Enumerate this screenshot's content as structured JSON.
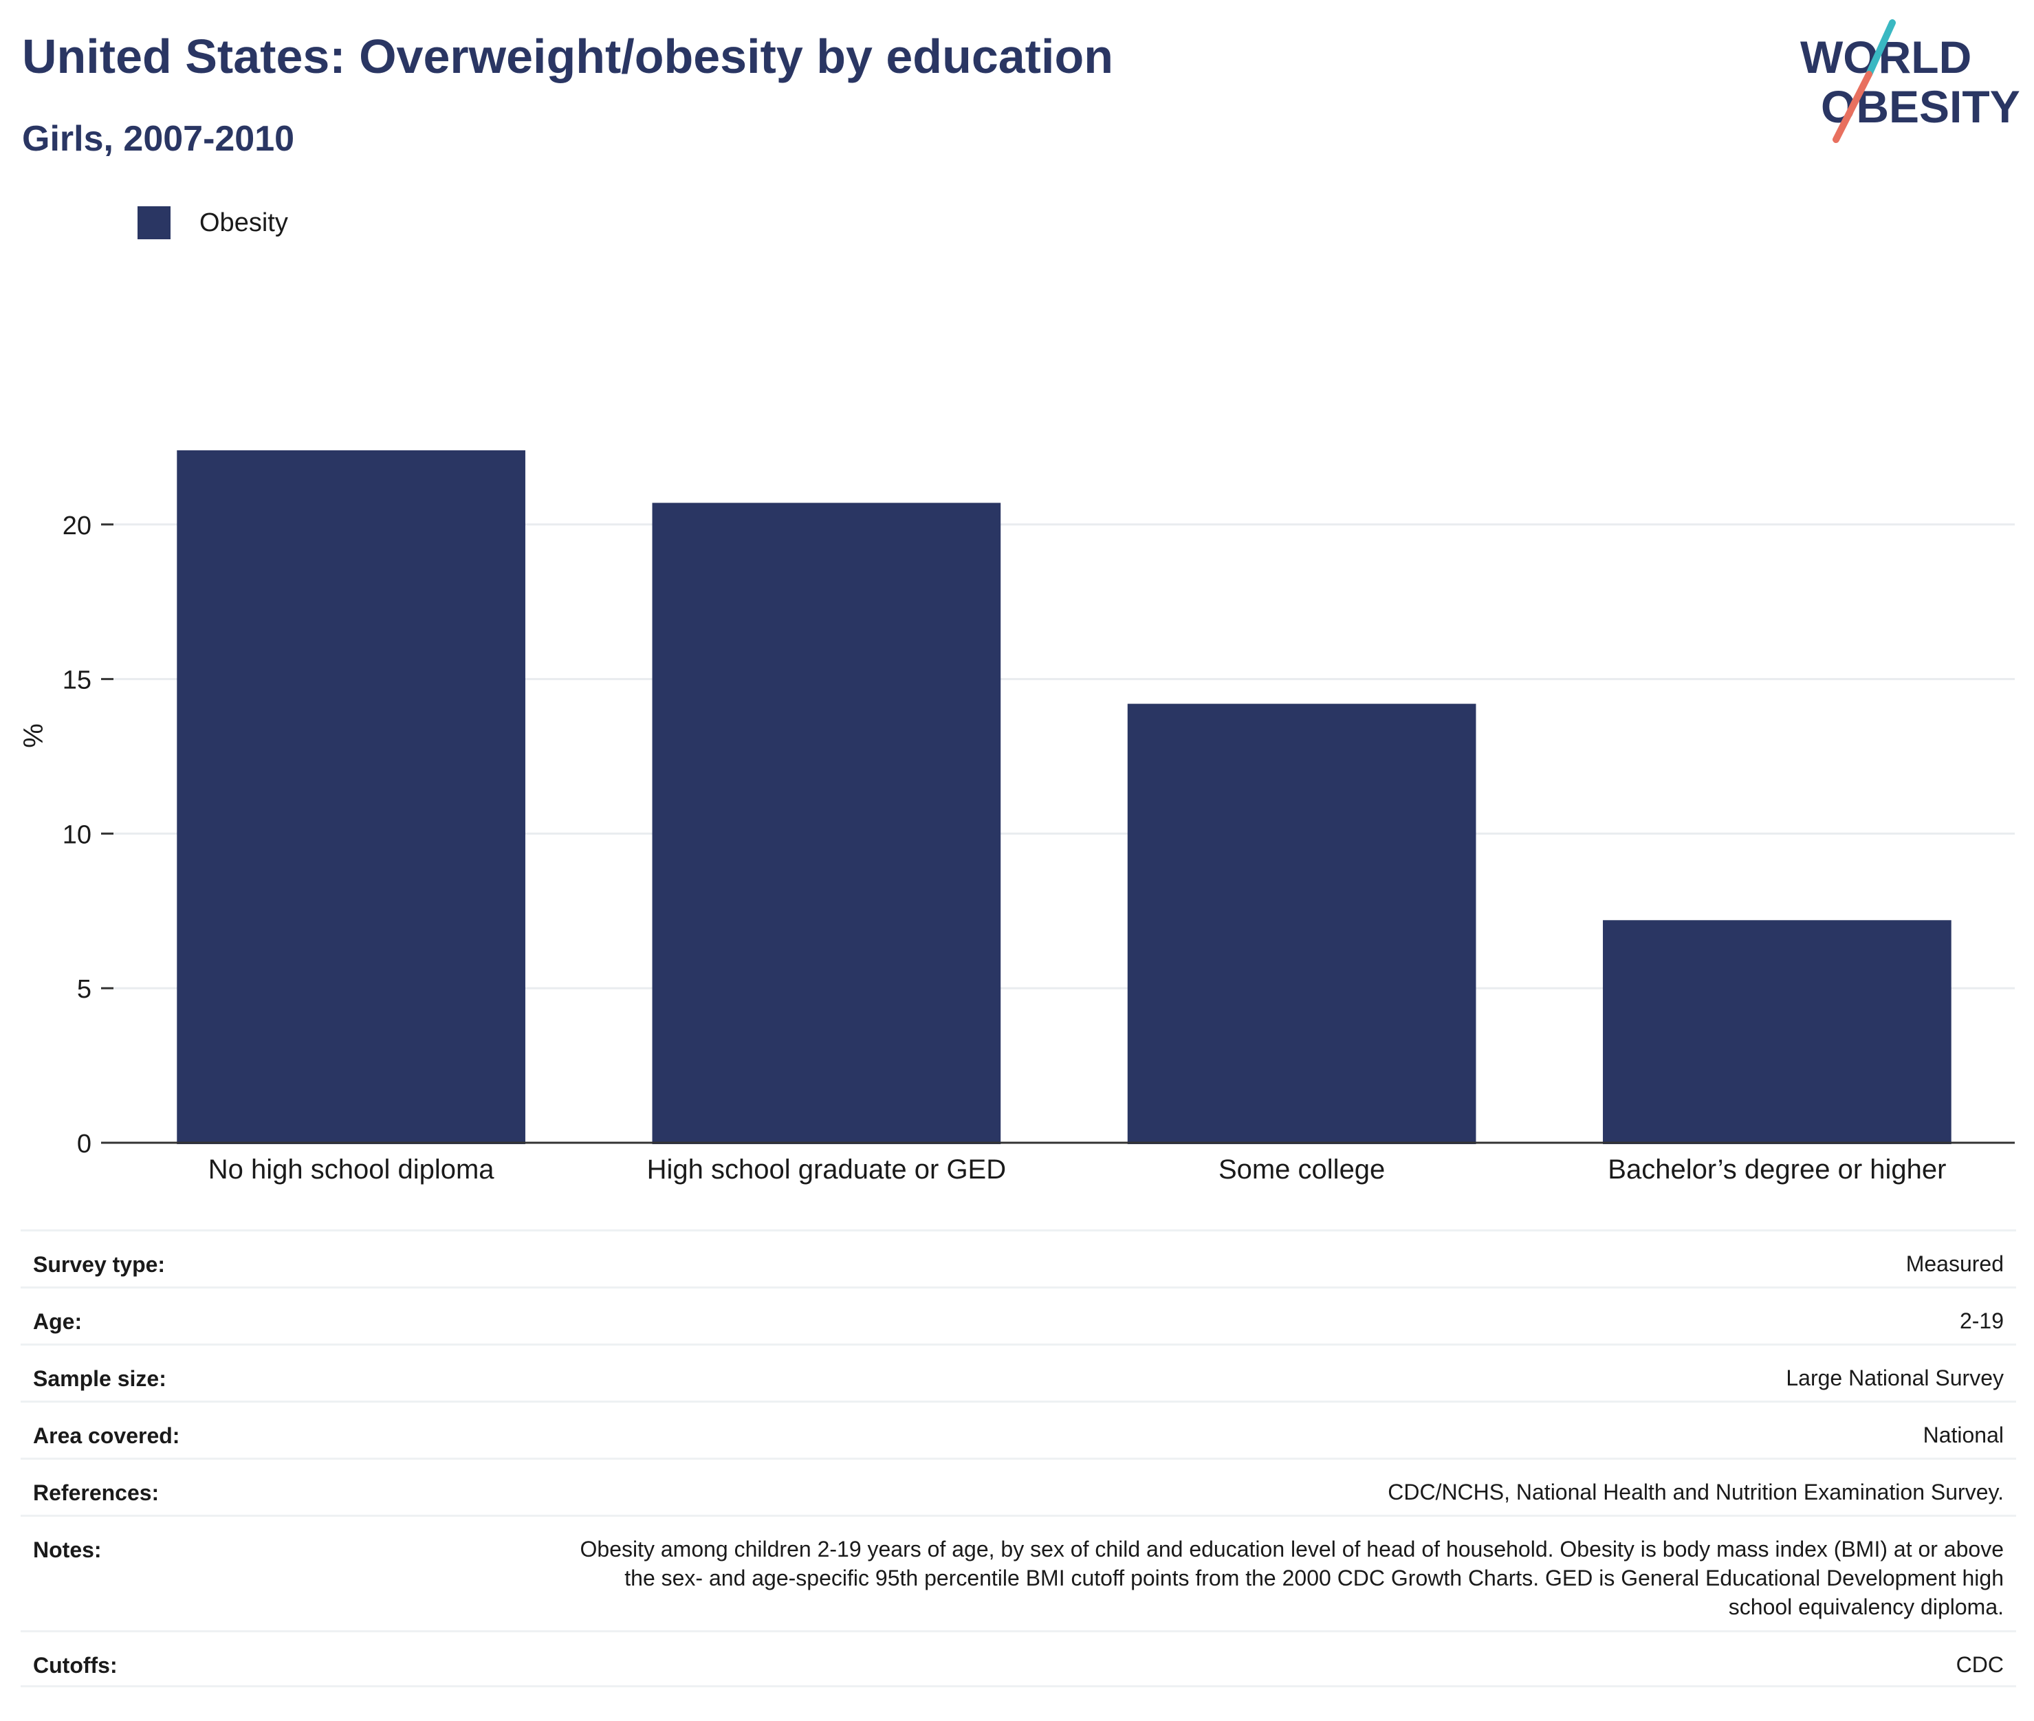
{
  "header": {
    "title": "United States: Overweight/obesity by education",
    "subtitle": "Girls, 2007-2010"
  },
  "logo": {
    "line1": "WORLD",
    "line2": "OBESITY"
  },
  "colors": {
    "bar": "#2a3663",
    "text": "#2a3663",
    "grid": "#e9ecef",
    "logo_teal": "#3ab8c2",
    "logo_coral": "#e8705f"
  },
  "chart_data": {
    "type": "bar",
    "categories": [
      "No high school diploma",
      "High school graduate or GED",
      "Some college",
      "Bachelor’s degree or higher"
    ],
    "series": [
      {
        "name": "Obesity",
        "values": [
          22.4,
          20.7,
          14.2,
          7.2
        ]
      }
    ],
    "ylabel": "%",
    "xlabel": "",
    "ylim": [
      0,
      25
    ],
    "yticks": [
      0,
      5,
      10,
      15,
      20
    ],
    "grid": true,
    "legend_position": "top-left"
  },
  "meta": {
    "rows": [
      {
        "label": "Survey type:",
        "value": "Measured"
      },
      {
        "label": "Age:",
        "value": "2-19"
      },
      {
        "label": "Sample size:",
        "value": "Large National Survey"
      },
      {
        "label": "Area covered:",
        "value": "National"
      },
      {
        "label": "References:",
        "value": "CDC/NCHS, National Health and Nutrition Examination Survey."
      },
      {
        "label": "Notes:",
        "value": "Obesity among children 2-19 years of age, by sex of child and education level of head of household. Obesity is body mass index (BMI) at or above the sex- and age-specific 95th percentile BMI cutoff points from the 2000 CDC Growth Charts. GED is General Educational Development high school equivalency diploma."
      },
      {
        "label": "Cutoffs:",
        "value": "CDC"
      }
    ]
  }
}
